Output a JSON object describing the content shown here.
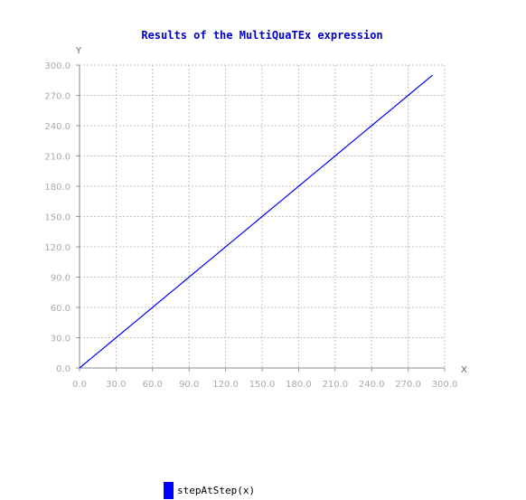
{
  "chart_data": {
    "type": "line",
    "title": "Results of the MultiQuaTEx expression",
    "xlabel": "X",
    "ylabel": "Y",
    "xlim": [
      0,
      300
    ],
    "ylim": [
      0,
      300
    ],
    "xticks": [
      "0.0",
      "30.0",
      "60.0",
      "90.0",
      "120.0",
      "150.0",
      "180.0",
      "210.0",
      "240.0",
      "270.0",
      "300.0"
    ],
    "yticks": [
      "0.0",
      "30.0",
      "60.0",
      "90.0",
      "120.0",
      "150.0",
      "180.0",
      "210.0",
      "240.0",
      "270.0",
      "300.0"
    ],
    "grid": true,
    "legend_position": "bottom",
    "series": [
      {
        "name": "stepAtStep(x)",
        "color": "#0000ff",
        "x": [
          0,
          10,
          20,
          30,
          40,
          50,
          60,
          70,
          80,
          90,
          100,
          110,
          120,
          130,
          140,
          150,
          160,
          170,
          180,
          190,
          200,
          210,
          220,
          230,
          240,
          250,
          260,
          270,
          280,
          290
        ],
        "y": [
          0,
          10,
          20,
          30,
          40,
          50,
          60,
          70,
          80,
          90,
          100,
          110,
          120,
          130,
          140,
          150,
          160,
          170,
          180,
          190,
          200,
          210,
          220,
          230,
          240,
          250,
          260,
          270,
          280,
          290
        ]
      }
    ]
  },
  "colors": {
    "title": "#0000cc",
    "axis_text": "#aaaaaa",
    "axis_label": "#666666",
    "grid": "#c0c0c0",
    "series": "#0000ff"
  }
}
